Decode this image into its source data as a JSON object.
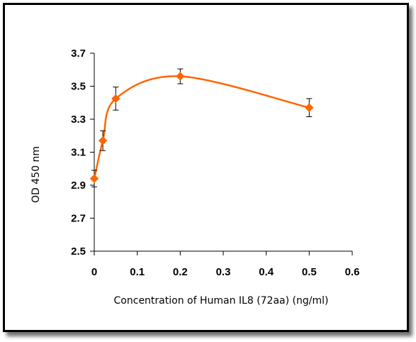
{
  "chart_data": {
    "type": "line",
    "title": "",
    "xlabel": "Concentration of Human IL8 (72aa) (ng/ml)",
    "ylabel": "OD 450 nm",
    "xlim": [
      0,
      0.6
    ],
    "ylim": [
      2.5,
      3.7
    ],
    "x_ticks": [
      "0",
      "0.1",
      "0.2",
      "0.3",
      "0.4",
      "0.5",
      "0.6"
    ],
    "y_ticks": [
      "2.5",
      "2.7",
      "2.9",
      "3.1",
      "3.3",
      "3.5",
      "3.7"
    ],
    "grid": false,
    "legend": "none",
    "smooth": true,
    "color": "#FF6600",
    "marker": "diamond",
    "series": [
      {
        "x": [
          0,
          0.02,
          0.05,
          0.2,
          0.5
        ],
        "y": [
          2.94,
          3.17,
          3.425,
          3.56,
          3.37
        ],
        "error": [
          0.05,
          0.06,
          0.07,
          0.045,
          0.055
        ]
      }
    ]
  }
}
